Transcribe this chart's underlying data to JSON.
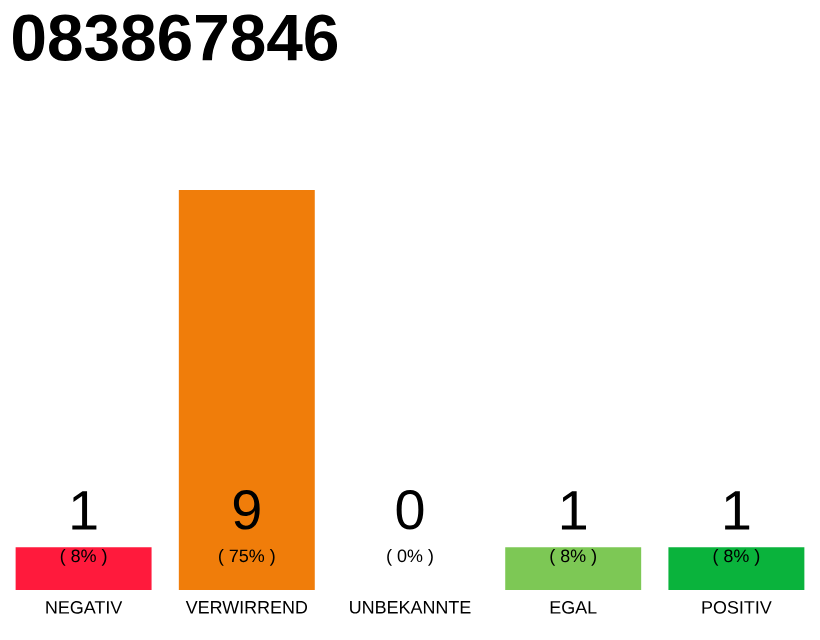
{
  "chart_data": {
    "type": "bar",
    "title": "083867846",
    "categories": [
      "NEGATIV",
      "VERWIRREND",
      "UNBEKANNTE",
      "EGAL",
      "POSITIV"
    ],
    "values": [
      8,
      75,
      0,
      8,
      8
    ],
    "colors": [
      "#ff1a3c",
      "#f07d0a",
      "#b4b4b4",
      "#7dc855",
      "#0ab33c"
    ],
    "value_labels": [
      "( 8% )",
      "( 75% )",
      "( 0% )",
      "( 8% )",
      "( 8% )"
    ],
    "annotations": [
      "1",
      "9",
      "0",
      "1",
      "1"
    ]
  }
}
